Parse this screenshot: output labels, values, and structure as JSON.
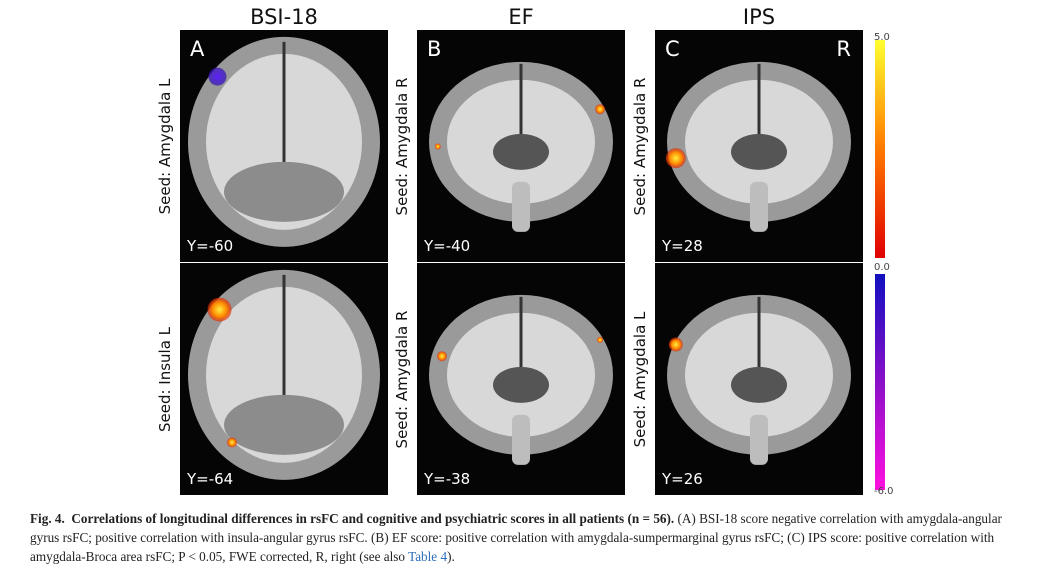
{
  "figure": {
    "columns": [
      {
        "title": "BSI-18",
        "panels": [
          {
            "letter": "A",
            "seed": "Seed: Amygdala L",
            "coord": "Y=-60"
          },
          {
            "seed": "Seed: Insula L",
            "coord": "Y=-64"
          }
        ]
      },
      {
        "title": "EF",
        "panels": [
          {
            "letter": "B",
            "seed": "Seed: Amygdala R",
            "coord": "Y=-40"
          },
          {
            "seed": "Seed: Amygdala R",
            "coord": "Y=-38"
          }
        ]
      },
      {
        "title": "IPS",
        "panels": [
          {
            "letter": "C",
            "side": "R",
            "seed": "Seed: Amygdala R",
            "coord": "Y=28"
          },
          {
            "seed": "Seed: Amygdala L",
            "coord": "Y=26"
          }
        ]
      }
    ],
    "colorbar": {
      "max": "5.0",
      "mid": "0.0",
      "min": "-6.0"
    }
  },
  "caption": {
    "label": "Fig. 4.",
    "title": "Correlations of longitudinal differences in rsFC and cognitive and psychiatric scores in all patients (n = 56).",
    "text": "(A) BSI-18 score negative correlation with amygdala-angular gyrus rsFC; positive correlation with insula-angular gyrus rsFC. (B) EF score: positive correlation with amygdala-sumpermarginal gyrus rsFC; (C) IPS score: positive correlation with amygdala-Broca area rsFC; P < 0.05, FWE corrected, R, right (see also",
    "link": "Table 4",
    "end": ")."
  }
}
